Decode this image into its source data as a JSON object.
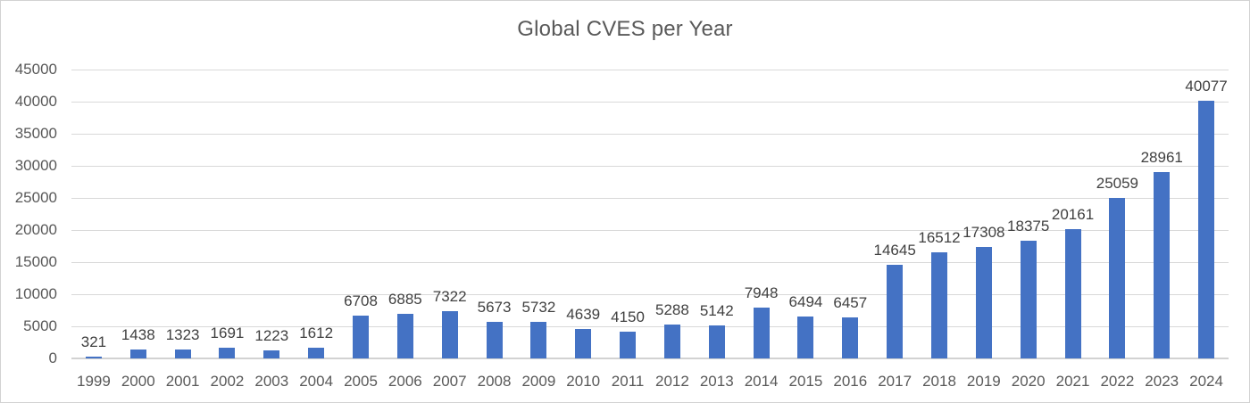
{
  "chart_data": {
    "type": "bar",
    "title": "Global CVES per Year",
    "categories": [
      "1999",
      "2000",
      "2001",
      "2002",
      "2003",
      "2004",
      "2005",
      "2006",
      "2007",
      "2008",
      "2009",
      "2010",
      "2011",
      "2012",
      "2013",
      "2014",
      "2015",
      "2016",
      "2017",
      "2018",
      "2019",
      "2020",
      "2021",
      "2022",
      "2023",
      "2024"
    ],
    "values": [
      321,
      1438,
      1323,
      1691,
      1223,
      1612,
      6708,
      6885,
      7322,
      5673,
      5732,
      4639,
      4150,
      5288,
      5142,
      7948,
      6494,
      6457,
      14645,
      16512,
      17308,
      18375,
      20161,
      25059,
      28961,
      40077
    ],
    "xlabel": "",
    "ylabel": "",
    "ylim": [
      0,
      45000
    ],
    "ytick_step": 5000,
    "yticks": [
      0,
      5000,
      10000,
      15000,
      20000,
      25000,
      30000,
      35000,
      40000,
      45000
    ],
    "grid": true,
    "legend_position": "none",
    "data_labels_visible": true,
    "colors": {
      "bar": "#4472C4",
      "gridline": "#D9D9D9",
      "axis_line": "#D2D2D2",
      "axis_label": "#595959",
      "data_label": "#404040",
      "title": "#595959",
      "background": "#FFFFFF",
      "frame_border": "#D2D2D2"
    }
  }
}
